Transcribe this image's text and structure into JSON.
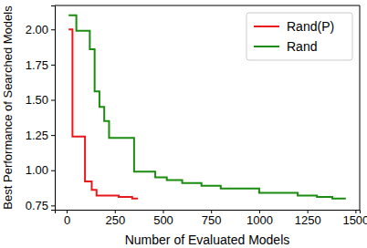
{
  "chart_data": {
    "type": "line",
    "x_label": "Number of Evaluated Models",
    "y_label": "Best Performance of Searched Models",
    "series": [
      {
        "name": "Rand(P)",
        "color": "#e8181b",
        "line_style": "step",
        "x": [
          10,
          30,
          95,
          130,
          155,
          270,
          340,
          370
        ],
        "values": [
          2.0,
          1.24,
          0.92,
          0.86,
          0.82,
          0.81,
          0.8,
          0.8
        ]
      },
      {
        "name": "Rand",
        "color": "#1a8c0f",
        "line_style": "step",
        "x": [
          10,
          50,
          120,
          145,
          170,
          195,
          220,
          350,
          460,
          520,
          600,
          700,
          800,
          1000,
          1200,
          1300,
          1380,
          1450
        ],
        "values": [
          2.1,
          1.99,
          1.86,
          1.56,
          1.45,
          1.35,
          1.23,
          0.99,
          0.95,
          0.93,
          0.91,
          0.89,
          0.87,
          0.84,
          0.82,
          0.81,
          0.8,
          0.8
        ]
      }
    ],
    "xlim": [
      -62,
      1522
    ],
    "xticks": [
      0,
      250,
      500,
      750,
      1000,
      1250,
      1500
    ],
    "ylim": [
      0.72,
      2.17
    ],
    "yticks": [
      0.75,
      {
        "value": 1,
        "label": "1.00"
      },
      1.25,
      {
        "value": 1.5,
        "label": "1.50"
      },
      1.75,
      {
        "value": 2,
        "label": "2.00"
      }
    ],
    "grid": false,
    "legend": "upper-right"
  }
}
